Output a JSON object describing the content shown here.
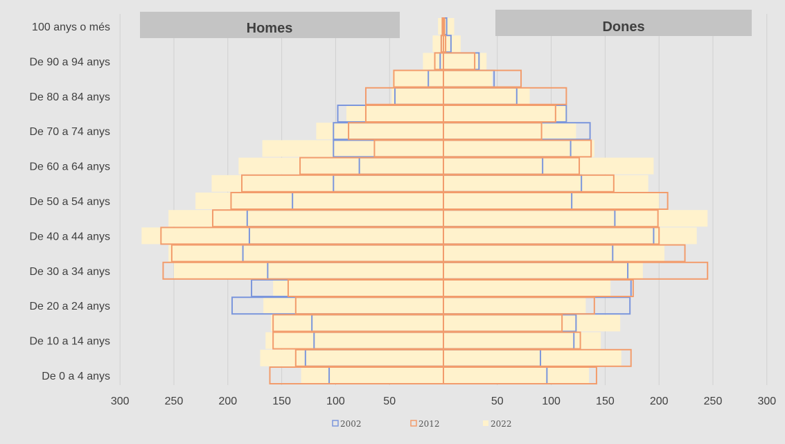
{
  "chart_data": {
    "type": "bar",
    "orientation": "horizontal",
    "age_labels": [
      "De 0 a 4 anys",
      "",
      "De 10 a 14 anys",
      "",
      "De 20 a 24 anys",
      "",
      "De 30 a 34 anys",
      "",
      "De 40 a 44 anys",
      "",
      "De 50 a 54 anys",
      "",
      "De 60 a 64 anys",
      "",
      "De 70 a 74 anys",
      "",
      "De 80 a 84 anys",
      "",
      "De 90 a 94 anys",
      "",
      "100 anys o més"
    ],
    "headers": {
      "left": "Homes",
      "right": "Dones"
    },
    "x_ticks_left": [
      "300",
      "250",
      "200",
      "150",
      "100",
      "50"
    ],
    "x_ticks_right": [
      "50",
      "100",
      "150",
      "200",
      "250",
      "300"
    ],
    "xlim": [
      0,
      300
    ],
    "grid": true,
    "legend_position": "bottom",
    "series": [
      {
        "name": "2002",
        "color": "#7b96dc",
        "style": "outline",
        "homes": [
          106,
          128,
          120,
          122,
          196,
          178,
          163,
          186,
          180,
          182,
          140,
          102,
          78,
          102,
          102,
          98,
          45,
          14,
          3,
          2,
          1
        ],
        "dones": [
          96,
          90,
          121,
          123,
          173,
          174,
          171,
          157,
          195,
          159,
          119,
          128,
          92,
          118,
          136,
          114,
          68,
          47,
          33,
          7,
          3
        ]
      },
      {
        "name": "2012",
        "color": "#f29c6c",
        "style": "outline",
        "homes": [
          161,
          137,
          158,
          158,
          137,
          144,
          260,
          252,
          262,
          214,
          197,
          187,
          133,
          64,
          88,
          72,
          72,
          46,
          8,
          2,
          1
        ],
        "dones": [
          142,
          174,
          127,
          110,
          140,
          176,
          245,
          224,
          200,
          199,
          208,
          158,
          126,
          137,
          91,
          104,
          114,
          72,
          29,
          2,
          1
        ]
      },
      {
        "name": "2022",
        "color": "#fff2cc",
        "style": "fill",
        "homes": [
          132,
          170,
          165,
          160,
          167,
          158,
          250,
          255,
          280,
          255,
          230,
          215,
          190,
          168,
          118,
          90,
          48,
          47,
          19,
          10,
          5
        ],
        "dones": [
          135,
          165,
          146,
          164,
          132,
          155,
          185,
          205,
          235,
          245,
          200,
          190,
          195,
          140,
          123,
          115,
          80,
          45,
          40,
          16,
          10
        ]
      }
    ]
  }
}
